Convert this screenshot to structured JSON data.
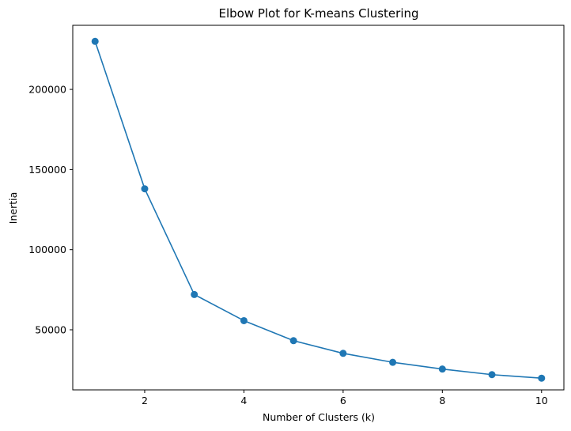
{
  "chart_data": {
    "type": "line",
    "title": "Elbow Plot for K-means Clustering",
    "xlabel": "Number of Clusters (k)",
    "ylabel": "Inertia",
    "xlim": [
      0.55,
      10.45
    ],
    "ylim": [
      12500,
      240000
    ],
    "xticks": [
      2,
      4,
      6,
      8,
      10
    ],
    "yticks": [
      50000,
      100000,
      150000,
      200000
    ],
    "grid": false,
    "series": [
      {
        "color": "#1f77b4",
        "marker": "circle",
        "x": [
          1,
          2,
          3,
          4,
          5,
          6,
          7,
          8,
          9,
          10
        ],
        "y": [
          230000,
          138000,
          72000,
          55700,
          43200,
          35300,
          29700,
          25500,
          22000,
          19800
        ]
      }
    ]
  }
}
